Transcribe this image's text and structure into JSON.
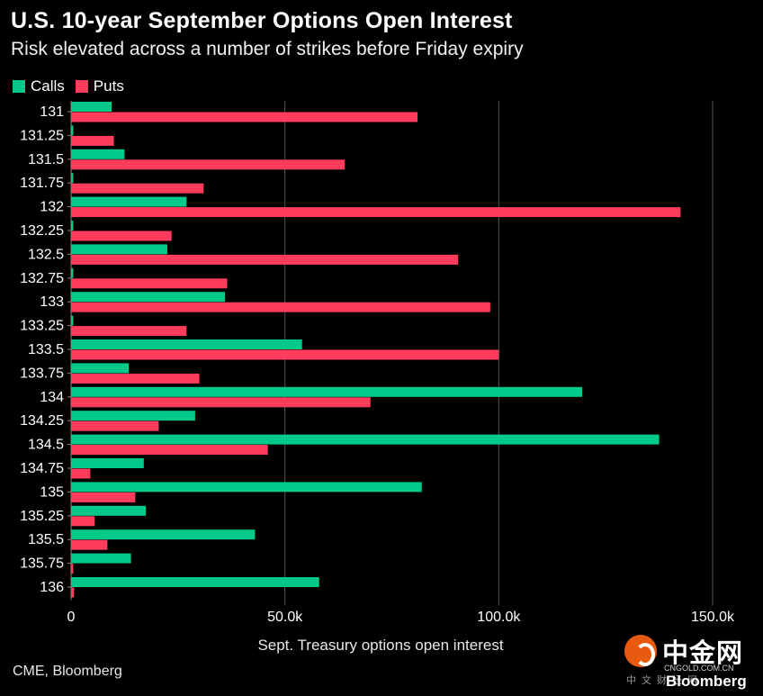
{
  "title": "U.S. 10-year September Options Open Interest",
  "subtitle": "Risk elevated across a number of strikes before Friday expiry",
  "source": "CME, Bloomberg",
  "watermark": {
    "name": "中金网",
    "url": "CNGOLD.COM.CN",
    "sub": "中文财经网",
    "bloomberg": "Bloomberg"
  },
  "colors": {
    "calls": "#00c98a",
    "puts": "#ff3c5c",
    "background": "#000000",
    "grid": "#555555",
    "text": "#ffffff"
  },
  "chart_data": {
    "type": "bar",
    "orientation": "horizontal",
    "title": "U.S. 10-year September Options Open Interest",
    "subtitle": "Risk elevated across a number of strikes before Friday expiry",
    "xlabel": "Sept. Treasury options open interest",
    "ylabel": "",
    "xlim": [
      0,
      150000
    ],
    "xticks": [
      0,
      50000,
      100000,
      150000
    ],
    "xtick_labels": [
      "0",
      "50.0k",
      "100.0k",
      "150.0k"
    ],
    "grid": true,
    "legend_position": "top-left",
    "categories": [
      "131",
      "131.25",
      "131.5",
      "131.75",
      "132",
      "132.25",
      "132.5",
      "132.75",
      "133",
      "133.25",
      "133.5",
      "133.75",
      "134",
      "134.25",
      "134.5",
      "134.75",
      "135",
      "135.25",
      "135.5",
      "135.75",
      "136"
    ],
    "series": [
      {
        "name": "Calls",
        "color": "#00c98a",
        "values": [
          9500,
          500,
          12500,
          500,
          27000,
          500,
          22500,
          500,
          36000,
          500,
          54000,
          13500,
          119500,
          29000,
          137500,
          17000,
          82000,
          17500,
          43000,
          14000,
          58000
        ]
      },
      {
        "name": "Puts",
        "color": "#ff3c5c",
        "values": [
          81000,
          10000,
          64000,
          31000,
          142500,
          23500,
          90500,
          36500,
          98000,
          27000,
          100000,
          30000,
          70000,
          20500,
          46000,
          4500,
          15000,
          5500,
          8500,
          500,
          700
        ]
      }
    ]
  }
}
